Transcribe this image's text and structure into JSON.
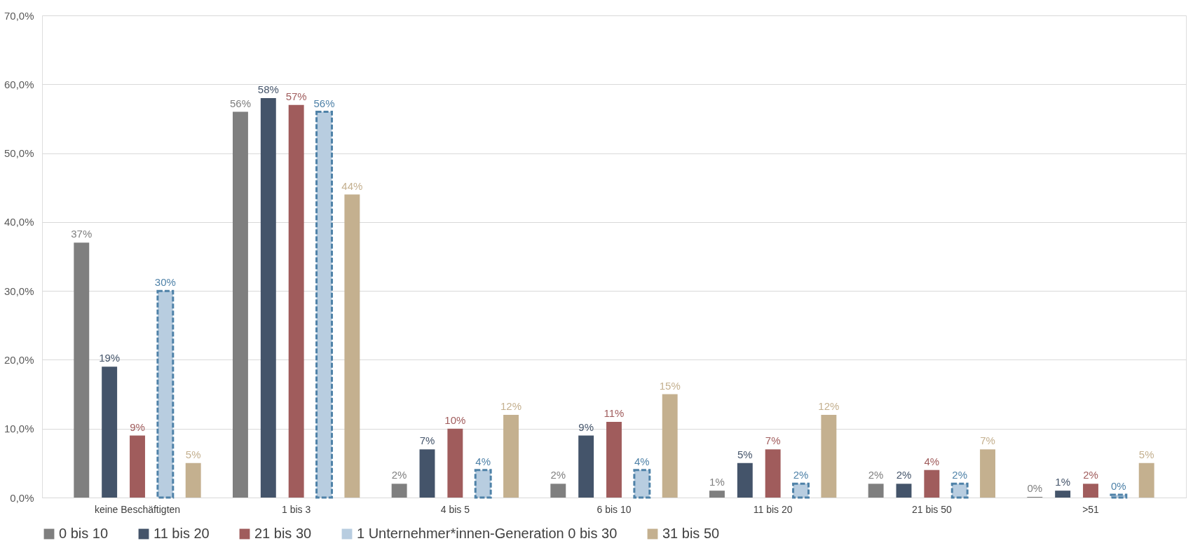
{
  "chart_data": {
    "type": "bar",
    "categories": [
      "keine Beschäftigten",
      "1 bis 3",
      "4 bis 5",
      "6 bis 10",
      "11 bis 20",
      "21 bis 50",
      ">51"
    ],
    "series": [
      {
        "name": "0 bis 10",
        "color": "#7f7f7f",
        "values": [
          37,
          56,
          2,
          2,
          1,
          2,
          0.1
        ],
        "value_labels": [
          "37%",
          "56%",
          "2%",
          "2%",
          "1%",
          "2%",
          "0%"
        ]
      },
      {
        "name": "11 bis 20",
        "color": "#44546a",
        "values": [
          19,
          58,
          7,
          9,
          5,
          2,
          1
        ],
        "value_labels": [
          "19%",
          "58%",
          "7%",
          "9%",
          "5%",
          "2%",
          "1%"
        ]
      },
      {
        "name": "21 bis 30",
        "color": "#a05c5c",
        "values": [
          9,
          57,
          10,
          11,
          7,
          4,
          2
        ],
        "value_labels": [
          "9%",
          "57%",
          "10%",
          "11%",
          "7%",
          "4%",
          "2%"
        ]
      },
      {
        "name": "1 Unternehmer*innen-Generation 0 bis 30",
        "color": "#b8cde0",
        "line_style": "dashed",
        "values": [
          30,
          56,
          4,
          4,
          2,
          2,
          0.4
        ],
        "value_labels": [
          "30%",
          "56%",
          "4%",
          "4%",
          "2%",
          "2%",
          "0%"
        ]
      },
      {
        "name": "31 bis 50",
        "color": "#c4b08f",
        "values": [
          5,
          44,
          12,
          15,
          12,
          7,
          5
        ],
        "value_labels": [
          "5%",
          "44%",
          "12%",
          "15%",
          "12%",
          "7%",
          "5%"
        ]
      }
    ],
    "ylim": [
      0,
      70
    ],
    "yticks": [
      {
        "value": 0,
        "label": "0,0%"
      },
      {
        "value": 10,
        "label": "10,0%"
      },
      {
        "value": 20,
        "label": "20,0%"
      },
      {
        "value": 30,
        "label": "30,0%"
      },
      {
        "value": 40,
        "label": "40,0%"
      },
      {
        "value": 50,
        "label": "50,0%"
      },
      {
        "value": 60,
        "label": "60,0%"
      },
      {
        "value": 70,
        "label": "70,0%"
      }
    ],
    "grid": "y",
    "legend": "bottom"
  }
}
